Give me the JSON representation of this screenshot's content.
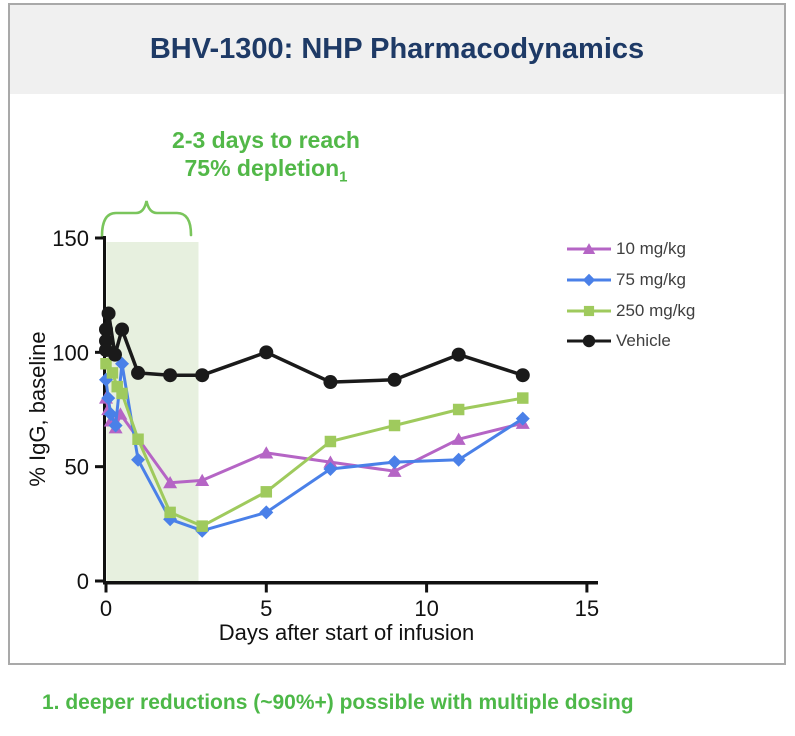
{
  "header": {
    "title": "BHV-1300: NHP Pharmacodynamics"
  },
  "annotation": {
    "line1": "2-3 days to reach",
    "line2": "75% depletion",
    "subscript": "1"
  },
  "footnote": {
    "text": "1. deeper reductions (~90%+) possible with multiple dosing"
  },
  "colors": {
    "title": "#1e3a66",
    "green_text": "#52b848",
    "band": "#e7f0df",
    "brace": "#7ac55c",
    "axis": "#111111",
    "legend_text": "#3f3f3f",
    "header_bg": "#f0f0f0",
    "frame_border": "#a9a9a9"
  },
  "chart_data": {
    "type": "line",
    "title": "BHV-1300: NHP Pharmacodynamics",
    "xlabel": "Days after start of infusion",
    "ylabel": "% IgG, baseline",
    "xlim": [
      0,
      15.3
    ],
    "ylim": [
      0,
      150
    ],
    "x_ticks": [
      0,
      5,
      10,
      15
    ],
    "y_ticks": [
      0,
      50,
      100,
      150
    ],
    "grid": false,
    "legend_position": "upper right",
    "shaded_region": {
      "x_start": 0,
      "x_end": 2.87,
      "note": "2-3 days to reach 75% depletion"
    },
    "series": [
      {
        "name": "10 mg/kg",
        "color": "#b565c5",
        "marker": "triangle",
        "points": [
          [
            0,
            80
          ],
          [
            0.07,
            75
          ],
          [
            0.15,
            70
          ],
          [
            0.3,
            67
          ],
          [
            0.45,
            73
          ],
          [
            2,
            43
          ],
          [
            3,
            44
          ],
          [
            5,
            56
          ],
          [
            7,
            52
          ],
          [
            9,
            48
          ],
          [
            11,
            62
          ],
          [
            13,
            69
          ]
        ]
      },
      {
        "name": "75 mg/kg",
        "color": "#4a80e8",
        "marker": "diamond",
        "points": [
          [
            0,
            88
          ],
          [
            0.07,
            80
          ],
          [
            0.15,
            73
          ],
          [
            0.3,
            68
          ],
          [
            0.5,
            95
          ],
          [
            1,
            53
          ],
          [
            2,
            27
          ],
          [
            3,
            22
          ],
          [
            5,
            30
          ],
          [
            7,
            49
          ],
          [
            9,
            52
          ],
          [
            11,
            53
          ],
          [
            13,
            71
          ]
        ]
      },
      {
        "name": "250 mg/kg",
        "color": "#9fca5d",
        "marker": "square",
        "points": [
          [
            0,
            95
          ],
          [
            0.2,
            91
          ],
          [
            0.35,
            85
          ],
          [
            0.5,
            82
          ],
          [
            1,
            62
          ],
          [
            2,
            30
          ],
          [
            3,
            24
          ],
          [
            5,
            39
          ],
          [
            7,
            61
          ],
          [
            9,
            68
          ],
          [
            11,
            75
          ],
          [
            13,
            80
          ]
        ]
      },
      {
        "name": "Vehicle",
        "color": "#1a1a1a",
        "marker": "circle",
        "points": [
          [
            0,
            101
          ],
          [
            0,
            105
          ],
          [
            0,
            110
          ],
          [
            0.08,
            117
          ],
          [
            0.28,
            99
          ],
          [
            0.5,
            110
          ],
          [
            1,
            91
          ],
          [
            2,
            90
          ],
          [
            3,
            90
          ],
          [
            5,
            100
          ],
          [
            7,
            87
          ],
          [
            9,
            88
          ],
          [
            11,
            99
          ],
          [
            13,
            90
          ]
        ]
      }
    ]
  }
}
